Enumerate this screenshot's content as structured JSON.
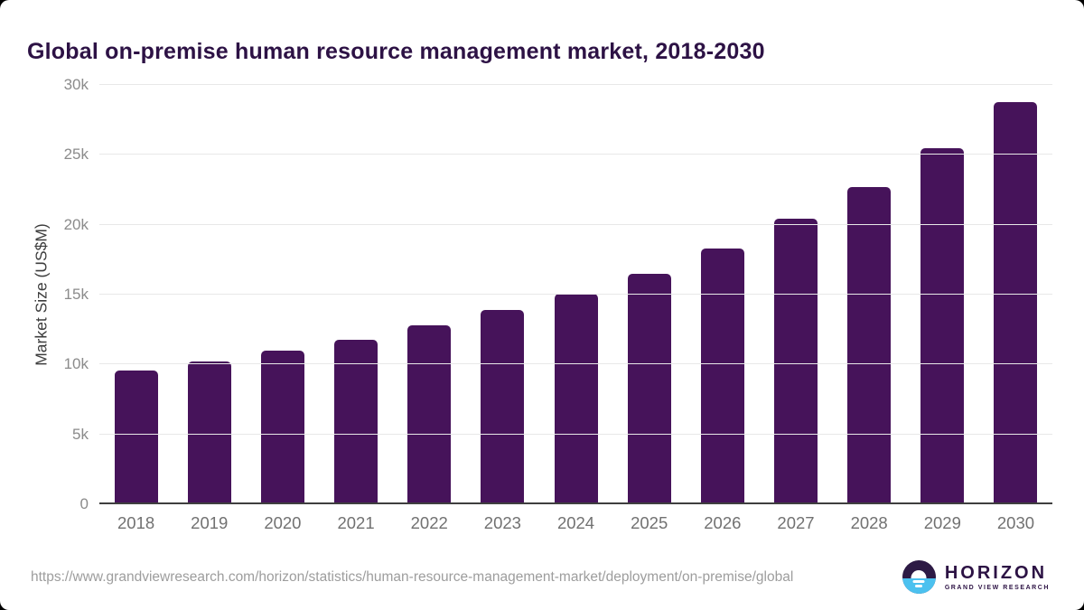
{
  "page": {
    "title": "Global on-premise human resource management market, 2018-2030",
    "source_url": "https://www.grandviewresearch.com/horizon/statistics/human-resource-management-market/deployment/on-premise/global"
  },
  "branding": {
    "name": "HORIZON",
    "subtitle": "GRAND VIEW RESEARCH",
    "logo_top_color": "#2d1a45",
    "logo_bottom_color": "#4cc1ef"
  },
  "chart_data": {
    "type": "bar",
    "title": "Global on-premise human resource management market, 2018-2030",
    "categories": [
      "2018",
      "2019",
      "2020",
      "2021",
      "2022",
      "2023",
      "2024",
      "2025",
      "2026",
      "2027",
      "2028",
      "2029",
      "2030"
    ],
    "values": [
      9550,
      10200,
      11000,
      11800,
      12800,
      13900,
      15050,
      16500,
      18300,
      20400,
      22700,
      25500,
      28800
    ],
    "xlabel": "",
    "ylabel": "Market Size (US$M)",
    "ylim": [
      0,
      30000
    ],
    "yticks": [
      {
        "value": 0,
        "label": "0"
      },
      {
        "value": 5000,
        "label": "5k"
      },
      {
        "value": 10000,
        "label": "10k"
      },
      {
        "value": 15000,
        "label": "15k"
      },
      {
        "value": 20000,
        "label": "20k"
      },
      {
        "value": 25000,
        "label": "25k"
      },
      {
        "value": 30000,
        "label": "30k"
      }
    ],
    "bar_color": "#46135a",
    "grid": true,
    "legend": false
  }
}
